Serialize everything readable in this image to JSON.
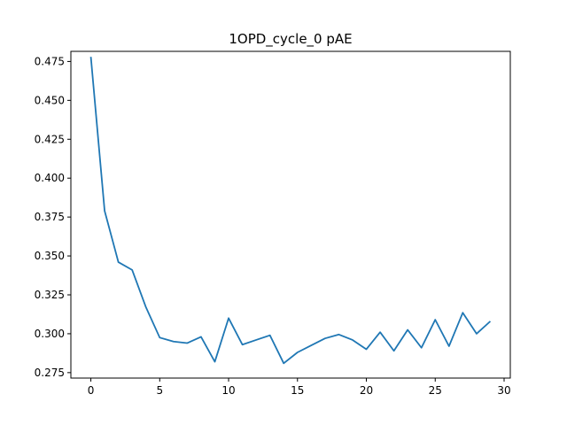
{
  "chart_data": {
    "type": "line",
    "title": "1OPD_cycle_0 pAE",
    "xlabel": "",
    "ylabel": "",
    "xlim": [
      -1.45,
      30.45
    ],
    "ylim": [
      0.2715,
      0.4815
    ],
    "xticks": [
      0,
      5,
      10,
      15,
      20,
      25,
      30
    ],
    "yticks": [
      0.275,
      0.3,
      0.325,
      0.35,
      0.375,
      0.4,
      0.425,
      0.45,
      0.475
    ],
    "ytick_labels": [
      "0.275",
      "0.300",
      "0.325",
      "0.350",
      "0.375",
      "0.400",
      "0.425",
      "0.450",
      "0.475"
    ],
    "grid": false,
    "series": [
      {
        "color": "#1f77b4",
        "x": [
          0,
          1,
          2,
          3,
          4,
          5,
          6,
          7,
          8,
          9,
          10,
          11,
          12,
          13,
          14,
          15,
          16,
          17,
          18,
          19,
          20,
          21,
          22,
          23,
          24,
          25,
          26,
          27,
          28,
          29
        ],
        "y": [
          0.478,
          0.379,
          0.346,
          0.341,
          0.317,
          0.2975,
          0.295,
          0.294,
          0.298,
          0.282,
          0.31,
          0.293,
          0.296,
          0.299,
          0.281,
          0.288,
          0.2925,
          0.297,
          0.2995,
          0.296,
          0.29,
          0.301,
          0.289,
          0.3025,
          0.291,
          0.309,
          0.292,
          0.3135,
          0.3,
          0.308
        ]
      }
    ]
  }
}
